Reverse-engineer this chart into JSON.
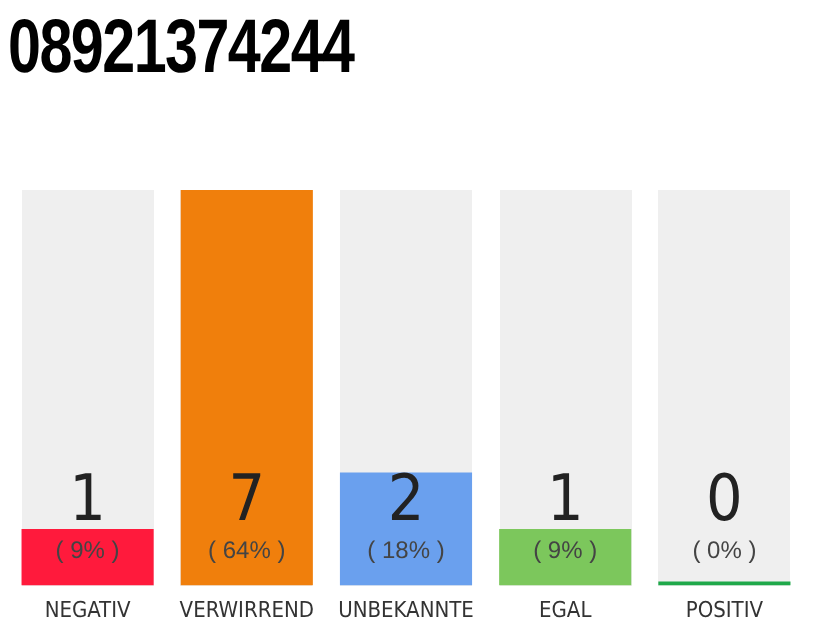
{
  "chart_data": {
    "type": "bar",
    "title": "08921374244",
    "categories": [
      "NEGATIV",
      "VERWIRREND",
      "UNBEKANNTE",
      "EGAL",
      "POSITIV"
    ],
    "values": [
      1,
      7,
      2,
      1,
      0
    ],
    "colors": [
      "#ff1a3c",
      "#f07f0c",
      "#6aa0ee",
      "#7cc75c",
      "#1fa84a"
    ],
    "data_labels": true,
    "annotations": [
      "( 9% )",
      "( 64% )",
      "( 18% )",
      "( 9% )",
      "( 0% )"
    ],
    "ylim": [
      0,
      7
    ],
    "tick_labels": "x",
    "grid": false,
    "legend": false
  }
}
